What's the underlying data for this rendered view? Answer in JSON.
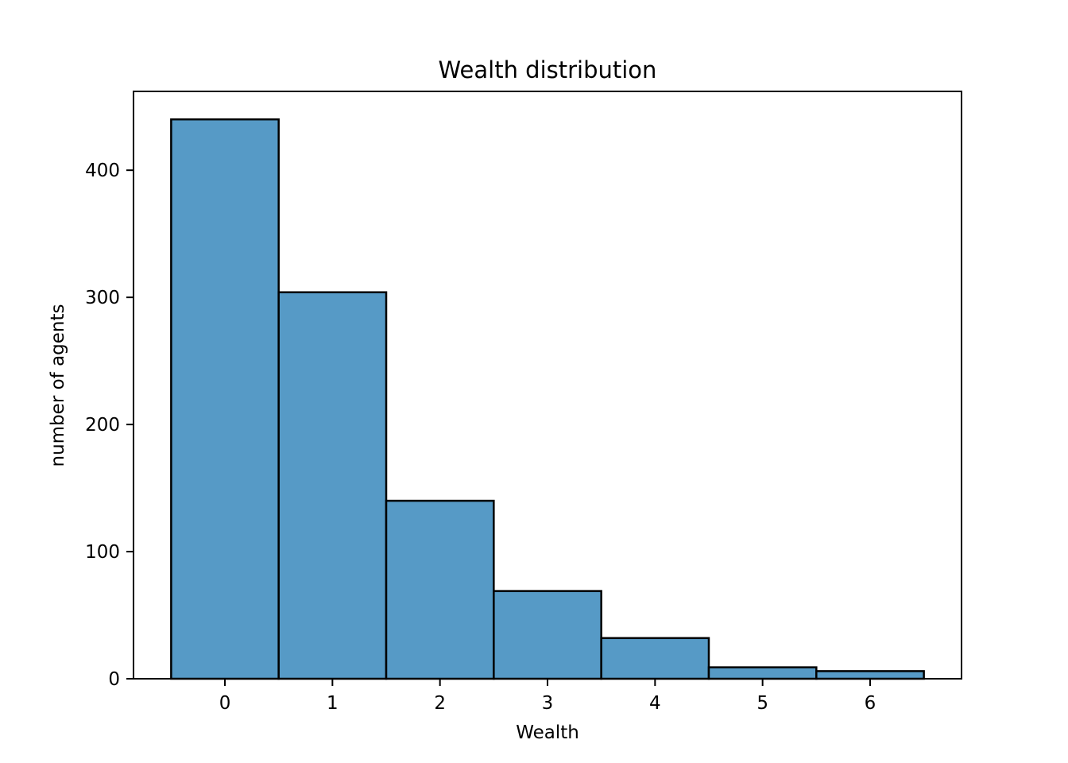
{
  "chart_data": {
    "type": "bar",
    "title": "Wealth distribution",
    "xlabel": "Wealth",
    "ylabel": "number of agents",
    "categories": [
      0,
      1,
      2,
      3,
      4,
      5,
      6
    ],
    "values": [
      440,
      304,
      140,
      69,
      32,
      9,
      6
    ],
    "xticks": [
      "0",
      "1",
      "2",
      "3",
      "4",
      "5",
      "6"
    ],
    "yticks": [
      "0",
      "100",
      "200",
      "300",
      "400"
    ],
    "xlim": [
      -0.85,
      6.85
    ],
    "ylim": [
      0,
      462
    ],
    "grid": false,
    "legend": "none",
    "bar_color": "#569ac6",
    "edge_color": "#000000"
  }
}
